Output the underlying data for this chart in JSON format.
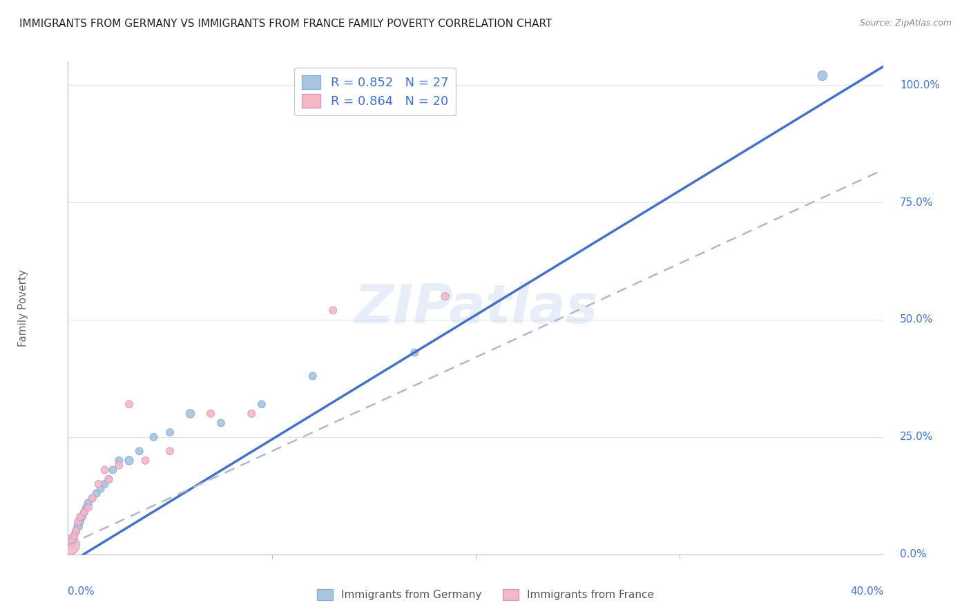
{
  "title": "IMMIGRANTS FROM GERMANY VS IMMIGRANTS FROM FRANCE FAMILY POVERTY CORRELATION CHART",
  "source": "Source: ZipAtlas.com",
  "ylabel": "Family Poverty",
  "right_yticks": [
    "0.0%",
    "25.0%",
    "50.0%",
    "75.0%",
    "100.0%"
  ],
  "right_ytick_vals": [
    0.0,
    0.25,
    0.5,
    0.75,
    1.0
  ],
  "watermark": "ZIPatlas",
  "legend_label_1": "R = 0.852   N = 27",
  "legend_label_2": "R = 0.864   N = 20",
  "legend_label_bottom_1": "Immigrants from Germany",
  "legend_label_bottom_2": "Immigrants from France",
  "germany_color": "#a8c4e0",
  "france_color": "#f4b8c8",
  "germany_line_color": "#4472c4",
  "france_line_color": "#b0b8c8",
  "germany_scatter": {
    "x": [
      0.001,
      0.002,
      0.003,
      0.004,
      0.005,
      0.006,
      0.007,
      0.008,
      0.009,
      0.01,
      0.012,
      0.014,
      0.016,
      0.018,
      0.02,
      0.022,
      0.025,
      0.03,
      0.035,
      0.042,
      0.05,
      0.06,
      0.075,
      0.095,
      0.12,
      0.17,
      0.37
    ],
    "y": [
      0.03,
      0.02,
      0.04,
      0.05,
      0.06,
      0.07,
      0.08,
      0.09,
      0.1,
      0.11,
      0.12,
      0.13,
      0.14,
      0.15,
      0.16,
      0.18,
      0.2,
      0.2,
      0.22,
      0.25,
      0.26,
      0.3,
      0.28,
      0.32,
      0.38,
      0.43,
      1.02
    ],
    "sizes": [
      60,
      60,
      60,
      60,
      80,
      60,
      60,
      60,
      60,
      60,
      60,
      60,
      60,
      60,
      60,
      60,
      60,
      80,
      60,
      60,
      60,
      80,
      60,
      60,
      60,
      60,
      100
    ]
  },
  "france_scatter": {
    "x": [
      0.001,
      0.002,
      0.003,
      0.004,
      0.005,
      0.006,
      0.008,
      0.01,
      0.012,
      0.015,
      0.018,
      0.02,
      0.025,
      0.03,
      0.038,
      0.05,
      0.07,
      0.09,
      0.13,
      0.185
    ],
    "y": [
      0.02,
      0.03,
      0.04,
      0.05,
      0.07,
      0.08,
      0.09,
      0.1,
      0.12,
      0.15,
      0.18,
      0.16,
      0.19,
      0.32,
      0.2,
      0.22,
      0.3,
      0.3,
      0.52,
      0.55
    ],
    "sizes": [
      400,
      60,
      60,
      60,
      60,
      60,
      60,
      60,
      60,
      60,
      60,
      60,
      60,
      60,
      60,
      60,
      60,
      60,
      60,
      60
    ]
  },
  "germany_line": {
    "x0": 0.0,
    "x1": 0.4,
    "y0": -0.02,
    "y1": 1.04
  },
  "france_line": {
    "x0": 0.0,
    "x1": 0.4,
    "y0": 0.02,
    "y1": 0.82
  },
  "xlim": [
    0.0,
    0.4
  ],
  "ylim": [
    0.0,
    1.05
  ],
  "grid_color": "#dde4ee",
  "background_color": "#ffffff",
  "title_fontsize": 11,
  "source_fontsize": 9,
  "tick_label_fontsize": 11,
  "ylabel_fontsize": 11,
  "legend_fontsize": 13
}
